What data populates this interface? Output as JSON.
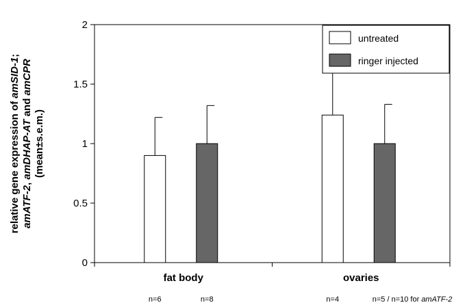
{
  "chart_data": {
    "type": "bar",
    "categories": [
      "fat body",
      "ovaries"
    ],
    "series": [
      {
        "name": "untreated",
        "values": [
          0.9,
          1.24
        ],
        "errors": [
          0.32,
          0.43
        ],
        "color": "#ffffff"
      },
      {
        "name": "ringer injected",
        "values": [
          1.0,
          1.0
        ],
        "errors": [
          0.32,
          0.33
        ],
        "color": "#666666"
      }
    ],
    "ylim": [
      0,
      2
    ],
    "yticks": [
      "0",
      "0.5",
      "1",
      "1.5",
      "2"
    ],
    "ylabel_lines": [
      {
        "parts": [
          {
            "t": "relative gene expression of ",
            "i": false
          },
          {
            "t": "amSID-1",
            "i": true
          },
          {
            "t": ";",
            "i": false
          }
        ]
      },
      {
        "parts": [
          {
            "t": "amATF-2",
            "i": true
          },
          {
            "t": ", ",
            "i": false
          },
          {
            "t": "amDHAP-AT",
            "i": true
          },
          {
            "t": " and ",
            "i": false
          },
          {
            "t": "amCPR",
            "i": true
          }
        ]
      },
      {
        "parts": [
          {
            "t": "(mean±s.e.m.)",
            "i": false
          }
        ]
      }
    ],
    "n_labels": [
      {
        "text": "n=6",
        "italic_suffix": ""
      },
      {
        "text": "n=8",
        "italic_suffix": ""
      },
      {
        "text": "n=4",
        "italic_suffix": ""
      },
      {
        "text": "n=5 / n=10 for ",
        "italic_suffix": "amATF-2"
      }
    ],
    "legend_position": "top-right",
    "grid": false
  }
}
